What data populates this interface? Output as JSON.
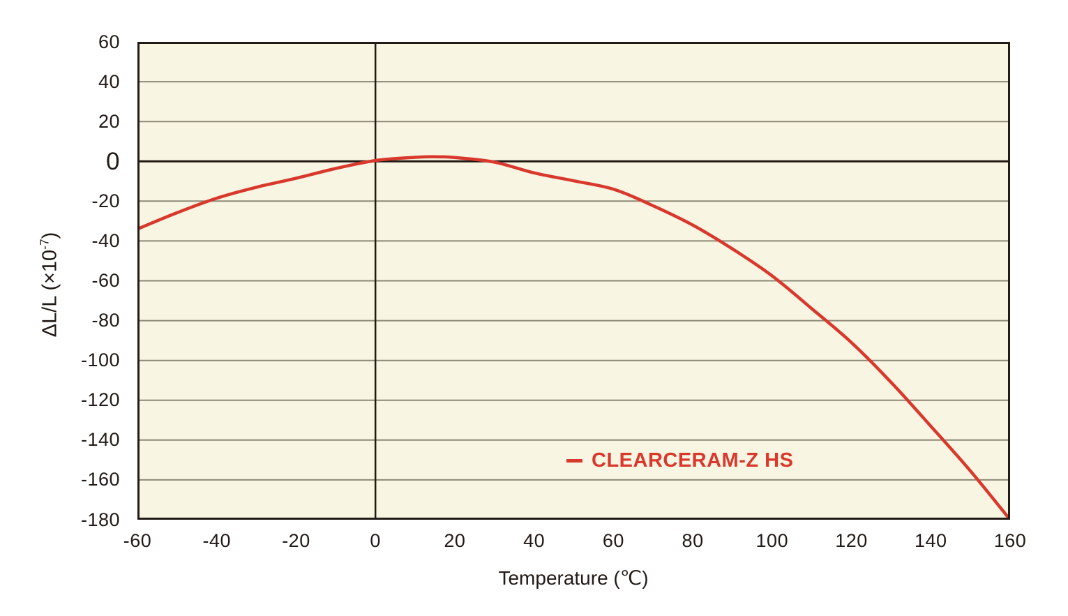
{
  "chart_data": {
    "type": "line",
    "title": "",
    "xlabel": "Temperature (℃)",
    "ylabel": "ΔL/L (×10⁻⁷)",
    "ylabel_parts": {
      "main": "ΔL/L (×10",
      "sup": "-7",
      "close": ")"
    },
    "xlim": [
      -60,
      160
    ],
    "ylim": [
      -180,
      60
    ],
    "x_ticks": [
      -60,
      -40,
      -20,
      0,
      20,
      40,
      60,
      80,
      100,
      120,
      140,
      160
    ],
    "y_ticks": [
      60,
      40,
      20,
      0,
      -20,
      -40,
      -60,
      -80,
      -100,
      -120,
      -140,
      -160,
      -180
    ],
    "grid": "horizontal-only",
    "zero_lines": {
      "vertical_at_x": 0,
      "horizontal_at_y": 0
    },
    "legend": {
      "label": "CLEARCERAM-Z HS",
      "position": "inside-lower-middle"
    },
    "series": [
      {
        "name": "CLEARCERAM-Z HS",
        "color": "#d9382d",
        "points": [
          [
            -60,
            -34
          ],
          [
            -50,
            -25.8
          ],
          [
            -40,
            -18.5
          ],
          [
            -30,
            -13
          ],
          [
            -20,
            -8.5
          ],
          [
            -10,
            -3.6
          ],
          [
            0,
            0.4
          ],
          [
            10,
            2.0
          ],
          [
            15,
            2.3
          ],
          [
            20,
            1.9
          ],
          [
            30,
            -0.4
          ],
          [
            40,
            -5.8
          ],
          [
            50,
            -9.8
          ],
          [
            60,
            -14
          ],
          [
            70,
            -22.3
          ],
          [
            80,
            -32
          ],
          [
            90,
            -44
          ],
          [
            100,
            -57.5
          ],
          [
            110,
            -74
          ],
          [
            120,
            -91
          ],
          [
            130,
            -111
          ],
          [
            140,
            -133
          ],
          [
            150,
            -155.5
          ],
          [
            160,
            -180
          ]
        ]
      }
    ],
    "colors": {
      "plot_bg": "#f8f6e2",
      "grid": "#8d8877",
      "axis": "#221a16",
      "accent": "#d9382d"
    }
  },
  "layout_note": "single line chart, legend inside plot"
}
